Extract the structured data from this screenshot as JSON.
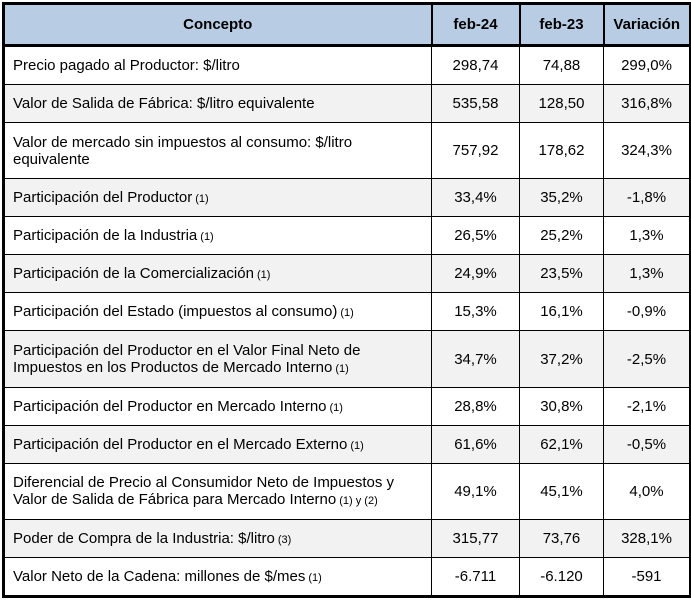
{
  "header": {
    "concepto": "Concepto",
    "feb24": "feb-24",
    "feb23": "feb-23",
    "variacion": "Variación"
  },
  "colors": {
    "header_bg": "#B8CCE4",
    "alt_row_bg": "#F2F2F2",
    "border": "#000000"
  },
  "rows": [
    {
      "concepto": "Precio pagado al Productor: $/litro",
      "note": "",
      "feb24": "298,74",
      "feb23": "74,88",
      "variacion": "299,0%"
    },
    {
      "concepto": "Valor de Salida de Fábrica: $/litro equivalente",
      "note": "",
      "feb24": "535,58",
      "feb23": "128,50",
      "variacion": "316,8%"
    },
    {
      "concepto": "Valor de mercado sin impuestos al consumo: $/litro equivalente",
      "note": "",
      "feb24": "757,92",
      "feb23": "178,62",
      "variacion": "324,3%"
    },
    {
      "concepto": "Participación del Productor",
      "note": "(1)",
      "feb24": "33,4%",
      "feb23": "35,2%",
      "variacion": "-1,8%"
    },
    {
      "concepto": "Participación de la Industria",
      "note": "(1)",
      "feb24": "26,5%",
      "feb23": "25,2%",
      "variacion": "1,3%"
    },
    {
      "concepto": "Participación de la Comercialización",
      "note": "(1)",
      "feb24": "24,9%",
      "feb23": "23,5%",
      "variacion": "1,3%"
    },
    {
      "concepto": "Participación del Estado (impuestos al consumo)",
      "note": "(1)",
      "feb24": "15,3%",
      "feb23": "16,1%",
      "variacion": "-0,9%"
    },
    {
      "concepto": "Participación del Productor en el Valor Final Neto de Impuestos en los Productos de Mercado Interno",
      "note": "(1)",
      "feb24": "34,7%",
      "feb23": "37,2%",
      "variacion": "-2,5%"
    },
    {
      "concepto": "Participación del Productor en Mercado Interno",
      "note": "(1)",
      "feb24": "28,8%",
      "feb23": "30,8%",
      "variacion": "-2,1%"
    },
    {
      "concepto": "Participación del Productor en el Mercado Externo",
      "note": "(1)",
      "feb24": "61,6%",
      "feb23": "62,1%",
      "variacion": "-0,5%"
    },
    {
      "concepto": "Diferencial de Precio al Consumidor Neto de Impuestos y Valor de Salida de Fábrica para Mercado Interno",
      "note": "(1) y (2)",
      "feb24": "49,1%",
      "feb23": "45,1%",
      "variacion": "4,0%"
    },
    {
      "concepto": "Poder de Compra de la Industria: $/litro",
      "note": "(3)",
      "feb24": "315,77",
      "feb23": "73,76",
      "variacion": "328,1%"
    },
    {
      "concepto": "Valor Neto de la Cadena: millones de $/mes",
      "note": "(1)",
      "feb24": "-6.711",
      "feb23": "-6.120",
      "variacion": "-591"
    }
  ]
}
